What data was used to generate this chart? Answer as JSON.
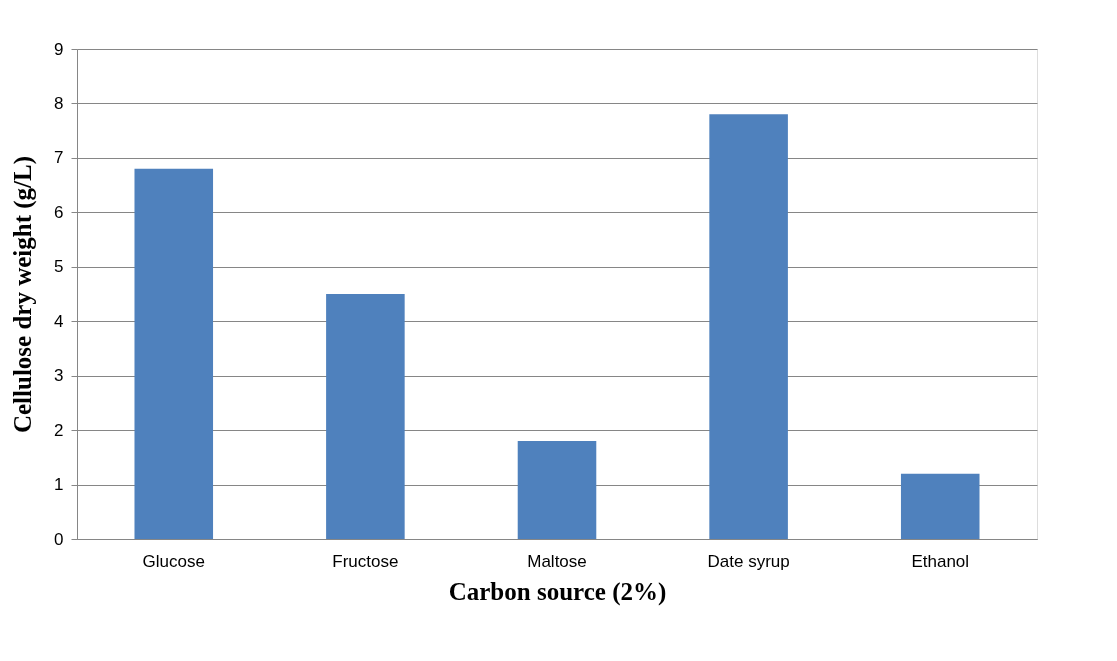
{
  "chart_data": {
    "type": "bar",
    "xlabel": "Carbon source (2%)",
    "ylabel": "Cellulose dry weight (g/L)",
    "categories": [
      "Glucose",
      "Fructose",
      "Maltose",
      "Date syrup",
      "Ethanol"
    ],
    "values": [
      6.8,
      4.5,
      1.8,
      7.8,
      1.2
    ],
    "color": "#4f81bd",
    "ylim": [
      0,
      9
    ],
    "yticks": [
      0,
      1,
      2,
      3,
      4,
      5,
      6,
      7,
      8,
      9
    ],
    "grid": "y"
  }
}
